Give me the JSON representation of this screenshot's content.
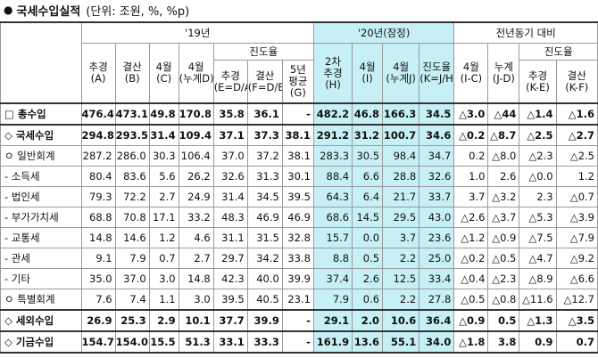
{
  "title": {
    "bullet": "●",
    "main": "국세수입실적",
    "unit": "(단위: 조원, %, %p)"
  },
  "header": {
    "y19": "'19년",
    "y20": "'20년(잠정)",
    "yoy": "전년동기 대비",
    "progress": "진도율",
    "cols": {
      "c1": [
        "추경",
        "(A)"
      ],
      "c2": [
        "결산",
        "(B)"
      ],
      "c3": [
        "4월",
        "(C)"
      ],
      "c4": [
        "4월",
        "(누계D)"
      ],
      "c5": [
        "추경",
        "(E=D/A)"
      ],
      "c6": [
        "결산",
        "(F=D/B)"
      ],
      "c7": [
        "5년",
        "평균",
        "(G)"
      ],
      "c8": [
        "2차",
        "추경",
        "(H)"
      ],
      "c9": [
        "4월",
        "(I)"
      ],
      "c10": [
        "4월",
        "(누계J)"
      ],
      "c11": [
        "진도율",
        "(K=J/H)"
      ],
      "c12": [
        "4월",
        "(I-C)"
      ],
      "c13": [
        "누계",
        "(J-D)"
      ],
      "c14": [
        "추경",
        "(K-E)"
      ],
      "c15": [
        "결산",
        "(K-F)"
      ]
    }
  },
  "rows": [
    {
      "label": "□ 총수입",
      "v": [
        "476.4",
        "473.1",
        "49.8",
        "170.8",
        "35.8",
        "36.1",
        "-",
        "482.2",
        "46.8",
        "166.3",
        "34.5",
        "△3.0",
        "△44",
        "△1.4",
        "△1.6"
      ]
    },
    {
      "label": "◇ 국세수입",
      "v": [
        "294.8",
        "293.5",
        "31.4",
        "109.4",
        "37.1",
        "37.3",
        "38.1",
        "291.2",
        "31.2",
        "100.7",
        "34.6",
        "△0.2",
        "△8.7",
        "△2.5",
        "△2.7"
      ]
    },
    {
      "label": "ㅇ 일반회계",
      "v": [
        "287.2",
        "286.0",
        "30.3",
        "106.4",
        "37.0",
        "37.2",
        "38.1",
        "283.3",
        "30.5",
        "98.4",
        "34.7",
        "0.2",
        "△8.0",
        "△2.3",
        "△2.5"
      ]
    },
    {
      "label": "- 소득세",
      "v": [
        "80.4",
        "83.6",
        "5.6",
        "26.2",
        "32.6",
        "31.3",
        "30.1",
        "88.4",
        "6.6",
        "28.8",
        "32.6",
        "1.0",
        "2.6",
        "△0.0",
        "1.2"
      ]
    },
    {
      "label": "- 법인세",
      "v": [
        "79.3",
        "72.2",
        "2.7",
        "24.9",
        "31.4",
        "34.5",
        "39.5",
        "64.3",
        "6.4",
        "21.7",
        "33.7",
        "3.7",
        "△3.2",
        "2.3",
        "△0.7"
      ]
    },
    {
      "label": "- 부가가치세",
      "v": [
        "68.8",
        "70.8",
        "17.1",
        "33.2",
        "48.3",
        "46.9",
        "46.9",
        "68.6",
        "14.5",
        "29.5",
        "43.0",
        "△2.6",
        "△3.7",
        "△5.3",
        "△3.9"
      ]
    },
    {
      "label": "- 교통세",
      "v": [
        "14.8",
        "14.6",
        "1.2",
        "4.6",
        "31.1",
        "31.5",
        "32.8",
        "15.7",
        "0.0",
        "3.7",
        "23.6",
        "△1.2",
        "△0.9",
        "△7.5",
        "△7.9"
      ]
    },
    {
      "label": "- 관세",
      "v": [
        "9.1",
        "7.9",
        "0.7",
        "2.7",
        "29.7",
        "34.2",
        "33.8",
        "8.8",
        "0.5",
        "2.2",
        "25.0",
        "△0.2",
        "△0.5",
        "△4.7",
        "△9.2"
      ]
    },
    {
      "label": "- 기타",
      "v": [
        "35.0",
        "37.0",
        "3.0",
        "14.8",
        "42.3",
        "40.0",
        "39.9",
        "37.4",
        "2.6",
        "12.5",
        "33.4",
        "△0.4",
        "△2.3",
        "△8.9",
        "△6.6"
      ]
    },
    {
      "label": "ㅇ 특별회계",
      "v": [
        "7.6",
        "7.4",
        "1.1",
        "3.0",
        "39.5",
        "40.5",
        "23.1",
        "7.9",
        "0.6",
        "2.2",
        "27.8",
        "△0.5",
        "△0.8",
        "△11.6",
        "△12.7"
      ]
    },
    {
      "label": "◇ 세외수입",
      "v": [
        "26.9",
        "25.3",
        "2.9",
        "10.1",
        "37.7",
        "39.9",
        "-",
        "29.1",
        "2.0",
        "10.6",
        "36.4",
        "△0.9",
        "0.5",
        "△1.3",
        "△3.5"
      ]
    },
    {
      "label": "◇ 기금수입",
      "v": [
        "154.7",
        "154.0",
        "15.5",
        "51.3",
        "33.1",
        "33.3",
        "-",
        "161.9",
        "13.6",
        "55.1",
        "34.0",
        "△1.8",
        "3.8",
        "0.9",
        "0.7"
      ]
    }
  ]
}
